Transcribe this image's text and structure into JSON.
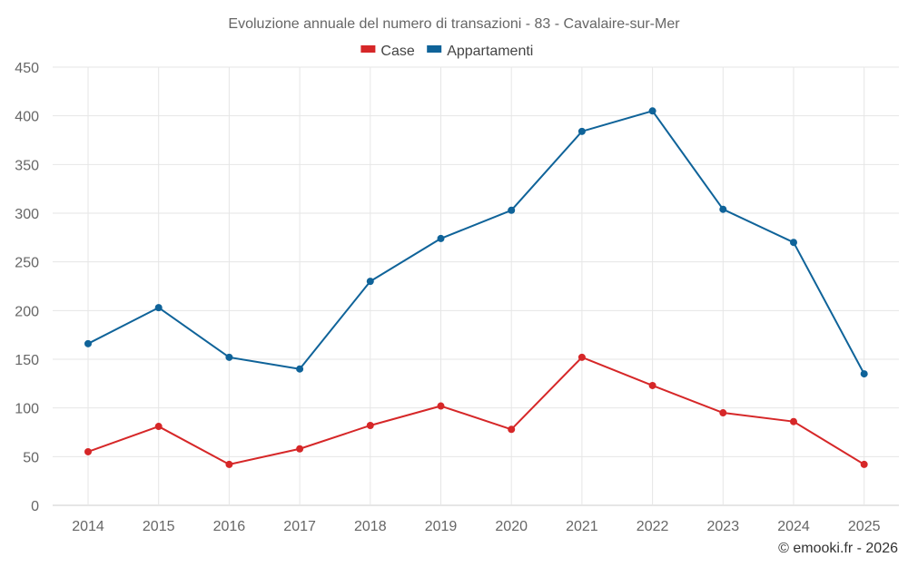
{
  "chart_data": {
    "type": "line",
    "title": "Evoluzione annuale del numero di transazioni - 83 - Cavalaire-sur-Mer",
    "x": [
      2014,
      2015,
      2016,
      2017,
      2018,
      2019,
      2020,
      2021,
      2022,
      2023,
      2024,
      2025
    ],
    "series": [
      {
        "name": "Case",
        "color": "#d62728",
        "values": [
          55,
          81,
          42,
          58,
          82,
          102,
          78,
          152,
          123,
          95,
          86,
          42
        ]
      },
      {
        "name": "Appartamenti",
        "color": "#0f6399",
        "values": [
          166,
          203,
          152,
          140,
          230,
          274,
          303,
          384,
          405,
          304,
          270,
          135
        ]
      }
    ],
    "ylim": [
      0,
      450
    ],
    "yticks": [
      0,
      50,
      100,
      150,
      200,
      250,
      300,
      350,
      400,
      450
    ],
    "xlabel": "",
    "ylabel": "",
    "grid": true,
    "legend_position": "top-center"
  },
  "credit": "© emooki.fr - 2026"
}
